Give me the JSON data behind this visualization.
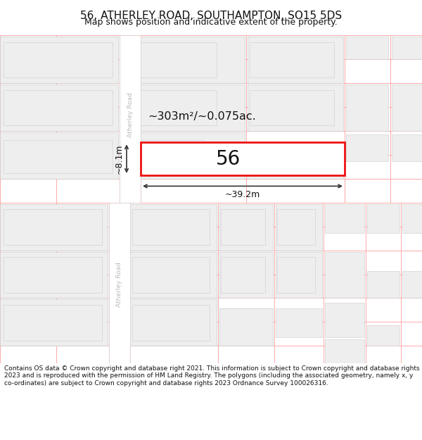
{
  "title": "56, ATHERLEY ROAD, SOUTHAMPTON, SO15 5DS",
  "subtitle": "Map shows position and indicative extent of the property.",
  "footer": "Contains OS data © Crown copyright and database right 2021. This information is subject to Crown copyright and database rights 2023 and is reproduced with the permission of HM Land Registry. The polygons (including the associated geometry, namely x, y co-ordinates) are subject to Crown copyright and database rights 2023 Ordnance Survey 100026316.",
  "background_color": "#ffffff",
  "map_bg": "#ffffff",
  "building_fill": "#eeeeee",
  "building_edge": "#cccccc",
  "lt_red": "#ffaaaa",
  "highlight_edge": "#ee1111",
  "dim_line_color": "#333333",
  "road_label": "Atherley Road",
  "area_label": "~303m²/~0.075ac.",
  "width_label": "~39.2m",
  "height_label": "~8.1m",
  "number_label": "56",
  "title_fontsize": 11,
  "subtitle_fontsize": 9,
  "footer_fontsize": 6.5
}
